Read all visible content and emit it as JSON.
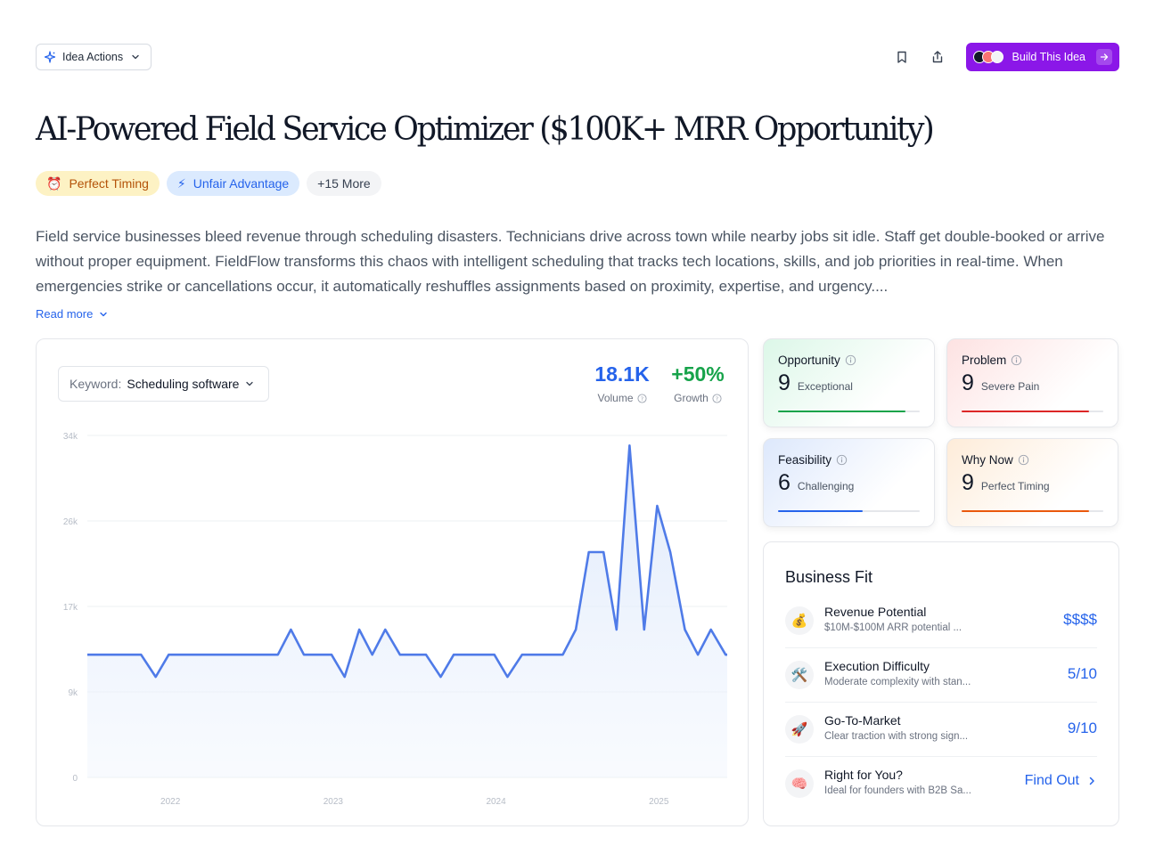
{
  "toolbar": {
    "idea_actions_label": "Idea Actions",
    "build_label": "Build This Idea"
  },
  "title": "AI-Powered Field Service Optimizer ($100K+ MRR Opportunity)",
  "tags": [
    {
      "emoji": "⏰",
      "label": "Perfect Timing"
    },
    {
      "emoji": "⚡",
      "label": "Unfair Advantage"
    },
    {
      "label": "+15 More"
    }
  ],
  "description": "Field service businesses bleed revenue through scheduling disasters. Technicians drive across town while nearby jobs sit idle. Staff get double-booked or arrive without proper equipment. FieldFlow transforms this chaos with intelligent scheduling that tracks tech locations, skills, and job priorities in real-time. When emergencies strike or cancellations occur, it automatically reshuffles assignments based on proximity, expertise, and urgency....",
  "read_more": "Read more",
  "keyword": {
    "label": "Keyword:",
    "value": "Scheduling software"
  },
  "metrics": {
    "volume": {
      "value": "18.1K",
      "label": "Volume"
    },
    "growth": {
      "value": "+50%",
      "label": "Growth"
    }
  },
  "chart_data": {
    "type": "area",
    "title": "",
    "xlabel": "",
    "ylabel": "",
    "ylim": [
      0,
      34000
    ],
    "y_ticks": [
      "0",
      "9k",
      "17k",
      "26k",
      "34k"
    ],
    "x_ticks": [
      "2022",
      "2023",
      "2024",
      "2025"
    ],
    "x_tick_positions": [
      2022,
      2023,
      2024,
      2025
    ],
    "x_range": [
      2021.49,
      2025.42
    ],
    "grid": true,
    "color": "#4f7be8",
    "series": [
      {
        "x": [
          2021.49,
          2021.57,
          2021.66,
          2021.74,
          2021.82,
          2021.91,
          2021.99,
          2022.07,
          2022.16,
          2022.24,
          2022.32,
          2022.41,
          2022.49,
          2022.57,
          2022.66,
          2022.74,
          2022.82,
          2022.91,
          2022.99,
          2023.07,
          2023.16,
          2023.24,
          2023.32,
          2023.41,
          2023.49,
          2023.57,
          2023.66,
          2023.74,
          2023.82,
          2023.91,
          2023.99,
          2024.07,
          2024.16,
          2024.24,
          2024.32,
          2024.41,
          2024.49,
          2024.57,
          2024.66,
          2024.74,
          2024.82,
          2024.91,
          2024.99,
          2025.07,
          2025.16,
          2025.24,
          2025.32,
          2025.41,
          2025.42
        ],
        "values": [
          12200,
          12200,
          12200,
          12200,
          12200,
          10000,
          12200,
          12200,
          12200,
          12200,
          12200,
          12200,
          12200,
          12200,
          12200,
          14700,
          12200,
          12200,
          12200,
          10000,
          14700,
          12200,
          14700,
          12200,
          12200,
          12200,
          10000,
          12200,
          12200,
          12200,
          12200,
          10000,
          12200,
          12200,
          12200,
          12200,
          14700,
          22400,
          22400,
          14700,
          33000,
          14700,
          27000,
          22400,
          14700,
          12200,
          14700,
          12200,
          12200
        ]
      }
    ]
  },
  "scores": [
    {
      "name": "Opportunity",
      "value": "9",
      "label": "Exceptional",
      "fraction": 0.9,
      "color": "#16a34a"
    },
    {
      "name": "Problem",
      "value": "9",
      "label": "Severe Pain",
      "fraction": 0.9,
      "color": "#dc2626"
    },
    {
      "name": "Feasibility",
      "value": "6",
      "label": "Challenging",
      "fraction": 0.6,
      "color": "#2563eb"
    },
    {
      "name": "Why Now",
      "value": "9",
      "label": "Perfect Timing",
      "fraction": 0.9,
      "color": "#ea580c"
    }
  ],
  "business_fit": {
    "title": "Business Fit",
    "rows": [
      {
        "icon": "💰",
        "name": "Revenue Potential",
        "desc": "$10M-$100M ARR potential ...",
        "value": "$$$$"
      },
      {
        "icon": "🛠️",
        "name": "Execution Difficulty",
        "desc": "Moderate complexity with stan...",
        "value": "5/10"
      },
      {
        "icon": "🚀",
        "name": "Go-To-Market",
        "desc": "Clear traction with strong sign...",
        "value": "9/10"
      },
      {
        "icon": "🧠",
        "name": "Right for You?",
        "desc": "Ideal for founders with B2B Sa...",
        "value": "Find Out"
      }
    ]
  }
}
